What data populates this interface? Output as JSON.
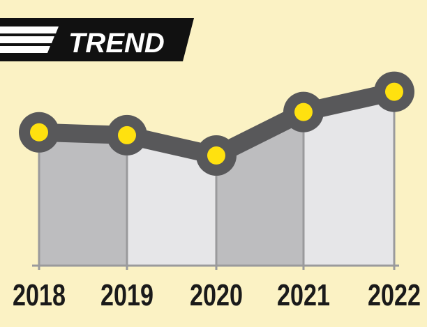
{
  "chart_data": {
    "type": "line",
    "title": "TREND",
    "categories": [
      "2018",
      "2019",
      "2020",
      "2021",
      "2022"
    ],
    "values": [
      46,
      45,
      38,
      53,
      60
    ],
    "ylim": [
      0,
      70
    ],
    "grid": false,
    "fill_colors": [
      "#bdbdbf",
      "#e6e6e8"
    ],
    "line_color": "#58585a",
    "marker_color": "#ffe10f",
    "background": "#fbf2c4"
  }
}
